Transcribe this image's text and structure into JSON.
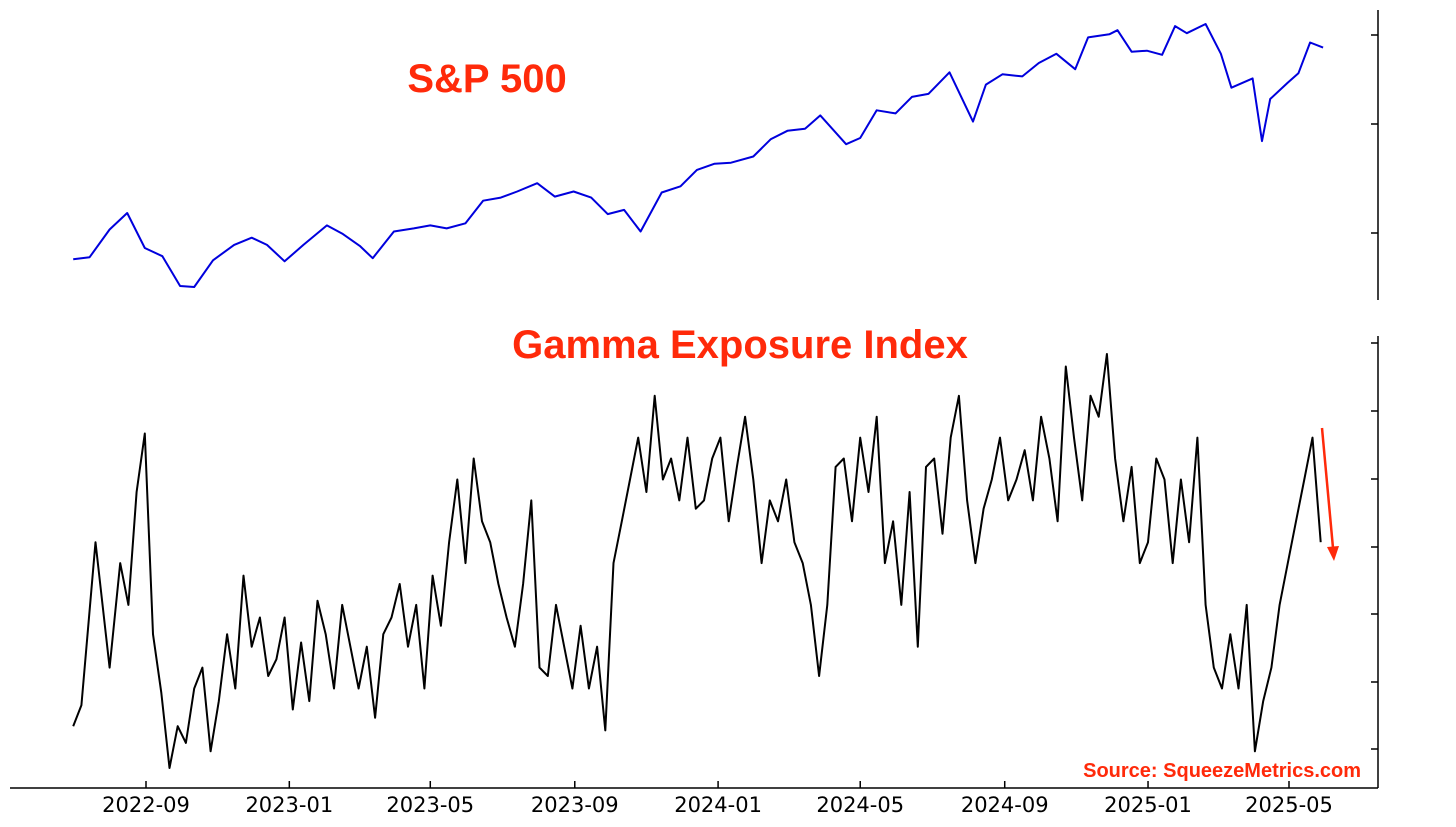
{
  "chart_data": [
    {
      "type": "line",
      "title": "S&P 500",
      "title_color": "#ff2a0a",
      "series": [
        {
          "color": "#0000dd",
          "x": [
            "2022-07-01",
            "2022-07-15",
            "2022-08-01",
            "2022-08-16",
            "2022-08-31",
            "2022-09-15",
            "2022-09-30",
            "2022-10-12",
            "2022-10-28",
            "2022-11-15",
            "2022-11-30",
            "2022-12-13",
            "2022-12-28",
            "2023-01-13",
            "2023-02-02",
            "2023-02-15",
            "2023-03-02",
            "2023-03-13",
            "2023-03-31",
            "2023-04-17",
            "2023-05-01",
            "2023-05-15",
            "2023-05-31",
            "2023-06-15",
            "2023-06-30",
            "2023-07-14",
            "2023-07-31",
            "2023-08-15",
            "2023-08-31",
            "2023-09-15",
            "2023-09-29",
            "2023-10-13",
            "2023-10-27",
            "2023-11-14",
            "2023-11-30",
            "2023-12-14",
            "2023-12-29",
            "2024-01-12",
            "2024-01-31",
            "2024-02-15",
            "2024-02-29",
            "2024-03-15",
            "2024-03-28",
            "2024-04-19",
            "2024-05-01",
            "2024-05-15",
            "2024-05-31",
            "2024-06-14",
            "2024-06-28",
            "2024-07-16",
            "2024-08-05",
            "2024-08-16",
            "2024-08-30",
            "2024-09-16",
            "2024-09-30",
            "2024-10-15",
            "2024-10-31",
            "2024-11-11",
            "2024-11-29",
            "2024-12-06",
            "2024-12-18",
            "2024-12-31",
            "2025-01-13",
            "2025-01-24",
            "2025-02-03",
            "2025-02-19",
            "2025-03-04",
            "2025-03-13",
            "2025-03-31",
            "2025-04-08",
            "2025-04-15",
            "2025-04-30",
            "2025-05-09",
            "2025-05-19",
            "2025-05-30"
          ],
          "y": [
            3850,
            3870,
            4140,
            4300,
            3960,
            3880,
            3590,
            3580,
            3840,
            3990,
            4060,
            3990,
            3830,
            3990,
            4180,
            4100,
            3980,
            3860,
            4120,
            4150,
            4180,
            4150,
            4200,
            4420,
            4450,
            4510,
            4590,
            4460,
            4510,
            4450,
            4290,
            4330,
            4120,
            4500,
            4560,
            4720,
            4780,
            4790,
            4850,
            5020,
            5100,
            5120,
            5250,
            4970,
            5030,
            5300,
            5270,
            5430,
            5460,
            5670,
            5190,
            5550,
            5650,
            5630,
            5760,
            5850,
            5700,
            6010,
            6040,
            6080,
            5870,
            5880,
            5840,
            6120,
            6050,
            6140,
            5850,
            5520,
            5610,
            5000,
            5410,
            5570,
            5660,
            5960,
            5910
          ]
        }
      ]
    },
    {
      "type": "line",
      "title": "Gamma Exposure Index",
      "title_color": "#ff2a0a",
      "xticks": [
        "2022-09",
        "2023-01",
        "2023-05",
        "2023-09",
        "2024-01",
        "2024-05",
        "2024-09",
        "2025-01",
        "2025-05"
      ],
      "annotation": {
        "type": "arrow",
        "direction": "down",
        "color": "#ff2a0a"
      },
      "series": [
        {
          "color": "#000000",
          "x": [
            "2022-07-01",
            "2022-07-08",
            "2022-07-20",
            "2022-08-01",
            "2022-08-10",
            "2022-08-17",
            "2022-08-24",
            "2022-08-31",
            "2022-09-07",
            "2022-09-14",
            "2022-09-21",
            "2022-09-28",
            "2022-10-05",
            "2022-10-12",
            "2022-10-19",
            "2022-10-26",
            "2022-11-02",
            "2022-11-09",
            "2022-11-16",
            "2022-11-23",
            "2022-11-30",
            "2022-12-07",
            "2022-12-14",
            "2022-12-21",
            "2022-12-28",
            "2023-01-04",
            "2023-01-11",
            "2023-01-18",
            "2023-01-25",
            "2023-02-01",
            "2023-02-08",
            "2023-02-15",
            "2023-02-22",
            "2023-03-01",
            "2023-03-08",
            "2023-03-15",
            "2023-03-22",
            "2023-03-29",
            "2023-04-05",
            "2023-04-12",
            "2023-04-19",
            "2023-04-26",
            "2023-05-03",
            "2023-05-10",
            "2023-05-17",
            "2023-05-24",
            "2023-05-31",
            "2023-06-07",
            "2023-06-14",
            "2023-06-21",
            "2023-06-28",
            "2023-07-05",
            "2023-07-12",
            "2023-07-19",
            "2023-07-26",
            "2023-08-02",
            "2023-08-09",
            "2023-08-16",
            "2023-08-23",
            "2023-08-30",
            "2023-09-06",
            "2023-09-13",
            "2023-09-20",
            "2023-09-27",
            "2023-10-04",
            "2023-10-11",
            "2023-10-18",
            "2023-10-25",
            "2023-11-01",
            "2023-11-08",
            "2023-11-15",
            "2023-11-22",
            "2023-11-29",
            "2023-12-06",
            "2023-12-13",
            "2023-12-20",
            "2023-12-27",
            "2024-01-03",
            "2024-01-10",
            "2024-01-17",
            "2024-01-24",
            "2024-01-31",
            "2024-02-07",
            "2024-02-14",
            "2024-02-21",
            "2024-02-28",
            "2024-03-06",
            "2024-03-13",
            "2024-03-20",
            "2024-03-27",
            "2024-04-03",
            "2024-04-10",
            "2024-04-17",
            "2024-04-24",
            "2024-05-01",
            "2024-05-08",
            "2024-05-15",
            "2024-05-22",
            "2024-05-29",
            "2024-06-05",
            "2024-06-12",
            "2024-06-19",
            "2024-06-26",
            "2024-07-03",
            "2024-07-10",
            "2024-07-17",
            "2024-07-24",
            "2024-07-31",
            "2024-08-07",
            "2024-08-14",
            "2024-08-21",
            "2024-08-28",
            "2024-09-04",
            "2024-09-11",
            "2024-09-18",
            "2024-09-25",
            "2024-10-02",
            "2024-10-09",
            "2024-10-16",
            "2024-10-23",
            "2024-10-30",
            "2024-11-06",
            "2024-11-13",
            "2024-11-20",
            "2024-11-27",
            "2024-12-04",
            "2024-12-11",
            "2024-12-18",
            "2024-12-25",
            "2025-01-01",
            "2025-01-08",
            "2025-01-15",
            "2025-01-22",
            "2025-01-29",
            "2025-02-05",
            "2025-02-12",
            "2025-02-19",
            "2025-02-26",
            "2025-03-05",
            "2025-03-12",
            "2025-03-19",
            "2025-03-26",
            "2025-04-02",
            "2025-04-09",
            "2025-04-16",
            "2025-04-23",
            "2025-04-30",
            "2025-05-07",
            "2025-05-14",
            "2025-05-21",
            "2025-05-28"
          ],
          "y": [
            2.6,
            3.1,
            7.0,
            4.0,
            6.5,
            5.5,
            8.2,
            9.6,
            4.8,
            3.4,
            1.6,
            2.6,
            2.2,
            3.5,
            4.0,
            2.0,
            3.2,
            4.8,
            3.5,
            6.2,
            4.5,
            5.2,
            3.8,
            4.2,
            5.2,
            3.0,
            4.6,
            3.2,
            5.6,
            4.8,
            3.5,
            5.5,
            4.5,
            3.5,
            4.5,
            2.8,
            4.8,
            5.2,
            6.0,
            4.5,
            5.5,
            3.5,
            6.2,
            5.0,
            7.0,
            8.5,
            6.5,
            9.0,
            7.5,
            7.0,
            6.0,
            5.2,
            4.5,
            6.0,
            8.0,
            4.0,
            3.8,
            5.5,
            4.5,
            3.5,
            5.0,
            3.5,
            4.5,
            2.5,
            6.5,
            7.5,
            8.5,
            9.5,
            8.2,
            10.5,
            8.5,
            9.0,
            8.0,
            9.5,
            7.8,
            8.0,
            9.0,
            9.5,
            7.5,
            8.8,
            10.0,
            8.5,
            6.5,
            8.0,
            7.5,
            8.5,
            7.0,
            6.5,
            5.5,
            3.8,
            5.5,
            8.8,
            9.0,
            7.5,
            9.5,
            8.2,
            10.0,
            6.5,
            7.5,
            5.5,
            8.2,
            4.5,
            8.8,
            9.0,
            7.2,
            9.5,
            10.5,
            8.0,
            6.5,
            7.8,
            8.5,
            9.5,
            8.0,
            8.5,
            9.2,
            8.0,
            10.0,
            9.0,
            7.5,
            11.2,
            9.5,
            8.0,
            10.5,
            10.0,
            11.5,
            9.0,
            7.5,
            8.8,
            6.5,
            7.0,
            9.0,
            8.5,
            6.5,
            8.5,
            7.0,
            9.5,
            5.5,
            4.0,
            3.5,
            4.8,
            3.5,
            5.5,
            2.0,
            3.2,
            4.0,
            5.5,
            6.5,
            7.5,
            8.5,
            9.5,
            7.0
          ]
        }
      ]
    }
  ],
  "source_label": "Source: SqueezeMetrics.com",
  "source_color": "#ff2a0a"
}
